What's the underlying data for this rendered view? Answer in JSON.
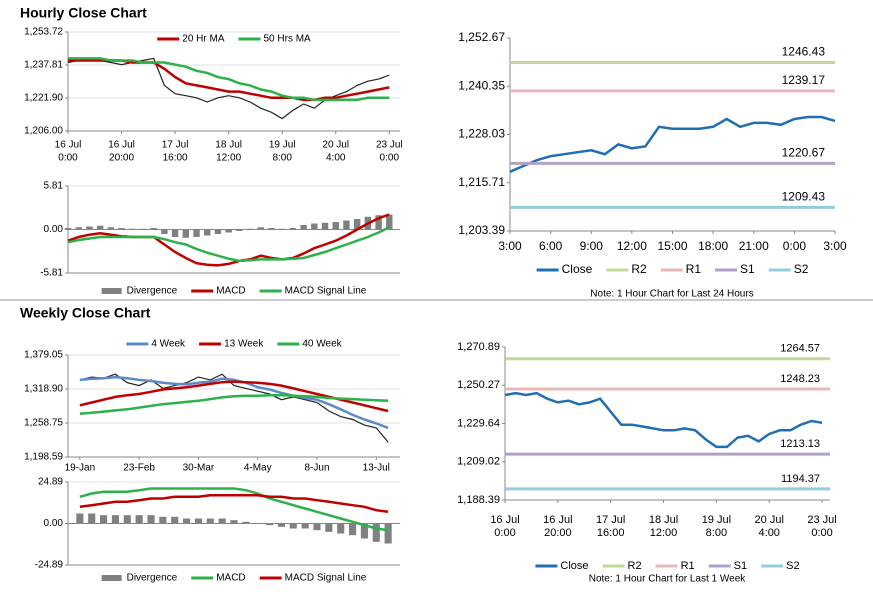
{
  "chart_data": [
    {
      "type": "line",
      "title": "Hourly Close Chart",
      "grid": true,
      "legend": "top",
      "x": [
        0,
        4,
        8,
        12,
        16,
        20,
        24,
        28,
        32,
        36,
        40,
        44,
        48,
        52,
        56,
        60,
        64,
        68,
        72,
        76,
        80,
        84,
        88,
        92,
        96,
        100,
        104,
        108,
        112,
        116,
        120
      ],
      "xlim": [
        0,
        124
      ],
      "xticks": [
        {
          "value": 0,
          "label": [
            "16 Jul",
            "0:00"
          ]
        },
        {
          "value": 20,
          "label": [
            "16 Jul",
            "20:00"
          ]
        },
        {
          "value": 40,
          "label": [
            "17 Jul",
            "16:00"
          ]
        },
        {
          "value": 60,
          "label": [
            "18 Jul",
            "12:00"
          ]
        },
        {
          "value": 80,
          "label": [
            "19 Jul",
            "8:00"
          ]
        },
        {
          "value": 100,
          "label": [
            "20 Jul",
            "4:00"
          ]
        },
        {
          "value": 120,
          "label": [
            "23 Jul",
            "0:00"
          ]
        }
      ],
      "ylim": [
        1206.0,
        1253.72
      ],
      "yticks": [
        {
          "value": 1206.0,
          "label": "1,206.00"
        },
        {
          "value": 1221.9,
          "label": "1,221.90"
        },
        {
          "value": 1237.81,
          "label": "1,237.81"
        },
        {
          "value": 1253.72,
          "label": "1,253.72"
        }
      ],
      "series": [
        {
          "color": "#222222",
          "values": [
            1239,
            1240,
            1241,
            1240,
            1239,
            1238,
            1239,
            1240,
            1241,
            1228,
            1224,
            1223,
            1222,
            1220,
            1222,
            1223,
            1222,
            1220,
            1217,
            1215,
            1212,
            1216,
            1219,
            1217,
            1221,
            1223,
            1225,
            1228,
            1230,
            1231,
            1233
          ]
        },
        {
          "name": "20 Hr MA",
          "color": "#c00000",
          "values": [
            1240,
            1240,
            1240,
            1240,
            1240,
            1240,
            1239,
            1239,
            1239,
            1236,
            1232,
            1229,
            1228,
            1227,
            1226,
            1225,
            1225,
            1224,
            1223,
            1222,
            1222,
            1222,
            1221,
            1221,
            1222,
            1222,
            1223,
            1224,
            1225,
            1226,
            1227
          ]
        },
        {
          "name": "50 Hrs MA",
          "color": "#2db14b",
          "values": [
            1241,
            1241,
            1241,
            1241,
            1240,
            1240,
            1240,
            1239,
            1239,
            1239,
            1238,
            1237,
            1235,
            1234,
            1232,
            1231,
            1229,
            1228,
            1226,
            1225,
            1223,
            1222,
            1222,
            1221,
            1221,
            1221,
            1221,
            1221,
            1222,
            1222,
            1222
          ]
        }
      ]
    },
    {
      "type": "combo",
      "grid": true,
      "legend": "bottom",
      "x": [
        0,
        4,
        8,
        12,
        16,
        20,
        24,
        28,
        32,
        36,
        40,
        44,
        48,
        52,
        56,
        60,
        64,
        68,
        72,
        76,
        80,
        84,
        88,
        92,
        96,
        100,
        104,
        108,
        112,
        116,
        120
      ],
      "xlim": [
        0,
        124
      ],
      "ylim": [
        -5.81,
        5.81
      ],
      "yticks": [
        -5.81,
        {
          "value": 0,
          "label": "0.00"
        },
        5.81
      ],
      "series": [
        {
          "name": "Divergence",
          "type": "bar",
          "color": "#808080",
          "values": [
            0.2,
            0.3,
            0.4,
            0.5,
            0.3,
            0.2,
            0.1,
            0.1,
            0.2,
            -0.6,
            -1.0,
            -1.1,
            -1.0,
            -0.8,
            -0.6,
            -0.4,
            -0.2,
            0.1,
            0.3,
            0.2,
            0.1,
            0.2,
            0.6,
            0.8,
            0.9,
            1.0,
            1.2,
            1.4,
            1.7,
            1.9,
            2.0
          ]
        },
        {
          "name": "MACD",
          "color": "#c00000",
          "values": [
            -1.5,
            -1.0,
            -0.7,
            -0.5,
            -0.7,
            -0.9,
            -1.0,
            -1.0,
            -1.0,
            -2.0,
            -3.0,
            -3.8,
            -4.5,
            -4.7,
            -4.8,
            -4.6,
            -4.2,
            -4.0,
            -3.5,
            -3.8,
            -4.0,
            -3.8,
            -3.2,
            -2.5,
            -2.0,
            -1.5,
            -0.8,
            0,
            0.8,
            1.5,
            2.0
          ]
        },
        {
          "name": "MACD Signal Line",
          "color": "#2db14b",
          "values": [
            -1.7,
            -1.4,
            -1.2,
            -1.0,
            -1.0,
            -1.0,
            -1.0,
            -1.0,
            -1.0,
            -1.3,
            -1.7,
            -2.0,
            -2.6,
            -3.1,
            -3.5,
            -3.9,
            -4.2,
            -4.1,
            -4.0,
            -4.0,
            -4.0,
            -3.9,
            -3.8,
            -3.4,
            -3.0,
            -2.5,
            -2.0,
            -1.5,
            -1.0,
            -0.4,
            0.3
          ]
        }
      ]
    },
    {
      "type": "line",
      "grid": false,
      "legend": "bottom",
      "note": "Note: 1 Hour Chart for Last 24 Hours",
      "x": [
        0,
        1,
        2,
        3,
        4,
        5,
        6,
        7,
        8,
        9,
        10,
        11,
        12,
        13,
        14,
        15,
        16,
        17,
        18,
        19,
        20,
        21,
        22,
        23,
        24
      ],
      "xlim": [
        0,
        24
      ],
      "xticks": [
        {
          "value": 0,
          "label": "3:00"
        },
        {
          "value": 3,
          "label": "6:00"
        },
        {
          "value": 6,
          "label": "9:00"
        },
        {
          "value": 9,
          "label": "12:00"
        },
        {
          "value": 12,
          "label": "15:00"
        },
        {
          "value": 15,
          "label": "18:00"
        },
        {
          "value": 18,
          "label": "21:00"
        },
        {
          "value": 21,
          "label": "0:00"
        },
        {
          "value": 24,
          "label": "3:00"
        }
      ],
      "ylim": [
        1203.39,
        1252.67
      ],
      "yticks": [
        {
          "value": 1203.39,
          "label": "1,203.39"
        },
        {
          "value": 1215.71,
          "label": "1,215.71"
        },
        {
          "value": 1228.03,
          "label": "1,228.03"
        },
        {
          "value": 1240.35,
          "label": "1,240.35"
        },
        {
          "value": 1252.67,
          "label": "1,252.67"
        }
      ],
      "series": [
        {
          "name": "Close",
          "color": "#1f6fb2",
          "values": [
            1218.5,
            1220,
            1221.5,
            1222.5,
            1223,
            1223.5,
            1224,
            1223,
            1225.5,
            1224.5,
            1225,
            1230,
            1229.5,
            1229.5,
            1229.5,
            1230,
            1232,
            1230,
            1231,
            1231,
            1230.5,
            1232,
            1232.5,
            1232.5,
            1231.5
          ]
        },
        {
          "name": "R2",
          "color": "#c4d79b",
          "value": 1246.43
        },
        {
          "name": "R1",
          "color": "#e6b9b8",
          "value": 1239.17
        },
        {
          "name": "S1",
          "color": "#b3a2c7",
          "value": 1220.67
        },
        {
          "name": "S2",
          "color": "#92cddc",
          "value": 1209.43
        }
      ]
    },
    {
      "type": "line",
      "title": "Weekly Close Chart",
      "grid": true,
      "legend": "top",
      "x": [
        0,
        1,
        2,
        3,
        4,
        5,
        6,
        7,
        8,
        9,
        10,
        11,
        12,
        13,
        14,
        15,
        16,
        17,
        18,
        19,
        20,
        21,
        22,
        23,
        24,
        25,
        26
      ],
      "xlim": [
        -1,
        27
      ],
      "xticks": [
        {
          "value": 0,
          "label": "19-Jan"
        },
        {
          "value": 5,
          "label": "23-Feb"
        },
        {
          "value": 10,
          "label": "30-Mar"
        },
        {
          "value": 15,
          "label": "4-May"
        },
        {
          "value": 20,
          "label": "8-Jun"
        },
        {
          "value": 25,
          "label": "13-Jul"
        }
      ],
      "ylim": [
        1198.59,
        1379.05
      ],
      "yticks": [
        {
          "value": 1198.59,
          "label": "1,198.59"
        },
        {
          "value": 1258.75,
          "label": "1,258.75"
        },
        {
          "value": 1318.9,
          "label": "1,318.90"
        },
        {
          "value": 1379.05,
          "label": "1,379.05"
        }
      ],
      "series": [
        {
          "color": "#222222",
          "values": [
            1335,
            1340,
            1338,
            1345,
            1330,
            1325,
            1335,
            1320,
            1325,
            1330,
            1340,
            1335,
            1345,
            1325,
            1320,
            1315,
            1310,
            1300,
            1305,
            1300,
            1295,
            1280,
            1270,
            1265,
            1255,
            1250,
            1225
          ]
        },
        {
          "name": "4 Week",
          "color": "#5b8ac6",
          "values": [
            1335,
            1337,
            1338,
            1340,
            1338,
            1335,
            1333,
            1330,
            1328,
            1327,
            1330,
            1332,
            1337,
            1335,
            1330,
            1322,
            1318,
            1312,
            1307,
            1303,
            1300,
            1292,
            1283,
            1273,
            1265,
            1258,
            1250
          ]
        },
        {
          "name": "13 Week",
          "color": "#c00000",
          "values": [
            1290,
            1295,
            1300,
            1305,
            1308,
            1310,
            1314,
            1318,
            1320,
            1322,
            1325,
            1328,
            1331,
            1332,
            1331,
            1330,
            1328,
            1325,
            1320,
            1315,
            1310,
            1305,
            1300,
            1295,
            1290,
            1285,
            1280
          ]
        },
        {
          "name": "40 Week",
          "color": "#2db14b",
          "values": [
            1275,
            1277,
            1279,
            1281,
            1283,
            1286,
            1289,
            1292,
            1294,
            1296,
            1298,
            1301,
            1304,
            1306,
            1307,
            1307,
            1308,
            1308,
            1307,
            1306,
            1305,
            1303,
            1302,
            1301,
            1300,
            1299,
            1298
          ]
        }
      ]
    },
    {
      "type": "combo",
      "grid": true,
      "legend": "bottom",
      "x": [
        0,
        1,
        2,
        3,
        4,
        5,
        6,
        7,
        8,
        9,
        10,
        11,
        12,
        13,
        14,
        15,
        16,
        17,
        18,
        19,
        20,
        21,
        22,
        23,
        24,
        25,
        26
      ],
      "xlim": [
        -1,
        27
      ],
      "ylim": [
        -24.89,
        24.89
      ],
      "yticks": [
        -24.89,
        {
          "value": 0,
          "label": "0.00"
        },
        24.89
      ],
      "series": [
        {
          "name": "Divergence",
          "type": "bar",
          "color": "#808080",
          "values": [
            6,
            6,
            5,
            5,
            5,
            5,
            5,
            4,
            4,
            3,
            3,
            3,
            3,
            2,
            1,
            0,
            -1,
            -2,
            -3,
            -3,
            -4,
            -5,
            -6,
            -7,
            -9,
            -11,
            -12
          ]
        },
        {
          "name": "MACD",
          "color": "#2db14b",
          "values": [
            16,
            18,
            19,
            19,
            19,
            20,
            21,
            21,
            21,
            21,
            21,
            21,
            21,
            21,
            20,
            18,
            15,
            13,
            11,
            9,
            7,
            5,
            3,
            1,
            -1,
            -3,
            -4
          ]
        },
        {
          "name": "MACD Signal Line",
          "color": "#c00000",
          "values": [
            10,
            11,
            12,
            13,
            13,
            14,
            15,
            15,
            16,
            16,
            16,
            17,
            17,
            17,
            17,
            17,
            16,
            16,
            15,
            15,
            14,
            13,
            12,
            11,
            10,
            8,
            7
          ]
        }
      ]
    },
    {
      "type": "line",
      "grid": false,
      "legend": "bottom",
      "note": "Note: 1 Hour Chart for Last 1 Week",
      "x": [
        0,
        4,
        8,
        12,
        16,
        20,
        24,
        28,
        32,
        36,
        40,
        44,
        48,
        52,
        56,
        60,
        64,
        68,
        72,
        76,
        80,
        84,
        88,
        92,
        96,
        100,
        104,
        108,
        112,
        116,
        120
      ],
      "xlim": [
        0,
        123
      ],
      "xticks": [
        {
          "value": 0,
          "label": [
            "16 Jul",
            "0:00"
          ]
        },
        {
          "value": 20,
          "label": [
            "16 Jul",
            "20:00"
          ]
        },
        {
          "value": 40,
          "label": [
            "17 Jul",
            "16:00"
          ]
        },
        {
          "value": 60,
          "label": [
            "18 Jul",
            "12:00"
          ]
        },
        {
          "value": 80,
          "label": [
            "19 Jul",
            "8:00"
          ]
        },
        {
          "value": 100,
          "label": [
            "20 Jul",
            "4:00"
          ]
        },
        {
          "value": 120,
          "label": [
            "23 Jul",
            "0:00"
          ]
        }
      ],
      "ylim": [
        1188.39,
        1270.89
      ],
      "yticks": [
        {
          "value": 1188.39,
          "label": "1,188.39"
        },
        {
          "value": 1209.02,
          "label": "1,209.02"
        },
        {
          "value": 1229.64,
          "label": "1,229.64"
        },
        {
          "value": 1250.27,
          "label": "1,250.27"
        },
        {
          "value": 1270.89,
          "label": "1,270.89"
        }
      ],
      "series": [
        {
          "name": "Close",
          "color": "#1f6fb2",
          "values": [
            1245,
            1246,
            1245,
            1246,
            1243,
            1241,
            1242,
            1240,
            1241,
            1243,
            1236,
            1229,
            1229,
            1228,
            1227,
            1226,
            1226,
            1227,
            1226,
            1221,
            1217,
            1217,
            1222,
            1223,
            1220,
            1224,
            1226,
            1226,
            1229,
            1231,
            1230
          ]
        },
        {
          "name": "R2",
          "color": "#c4d79b",
          "value": 1264.57
        },
        {
          "name": "R1",
          "color": "#e6b9b8",
          "value": 1248.23
        },
        {
          "name": "S1",
          "color": "#b3a2c7",
          "value": 1213.13
        },
        {
          "name": "S2",
          "color": "#92cddc",
          "value": 1194.37
        }
      ]
    }
  ]
}
